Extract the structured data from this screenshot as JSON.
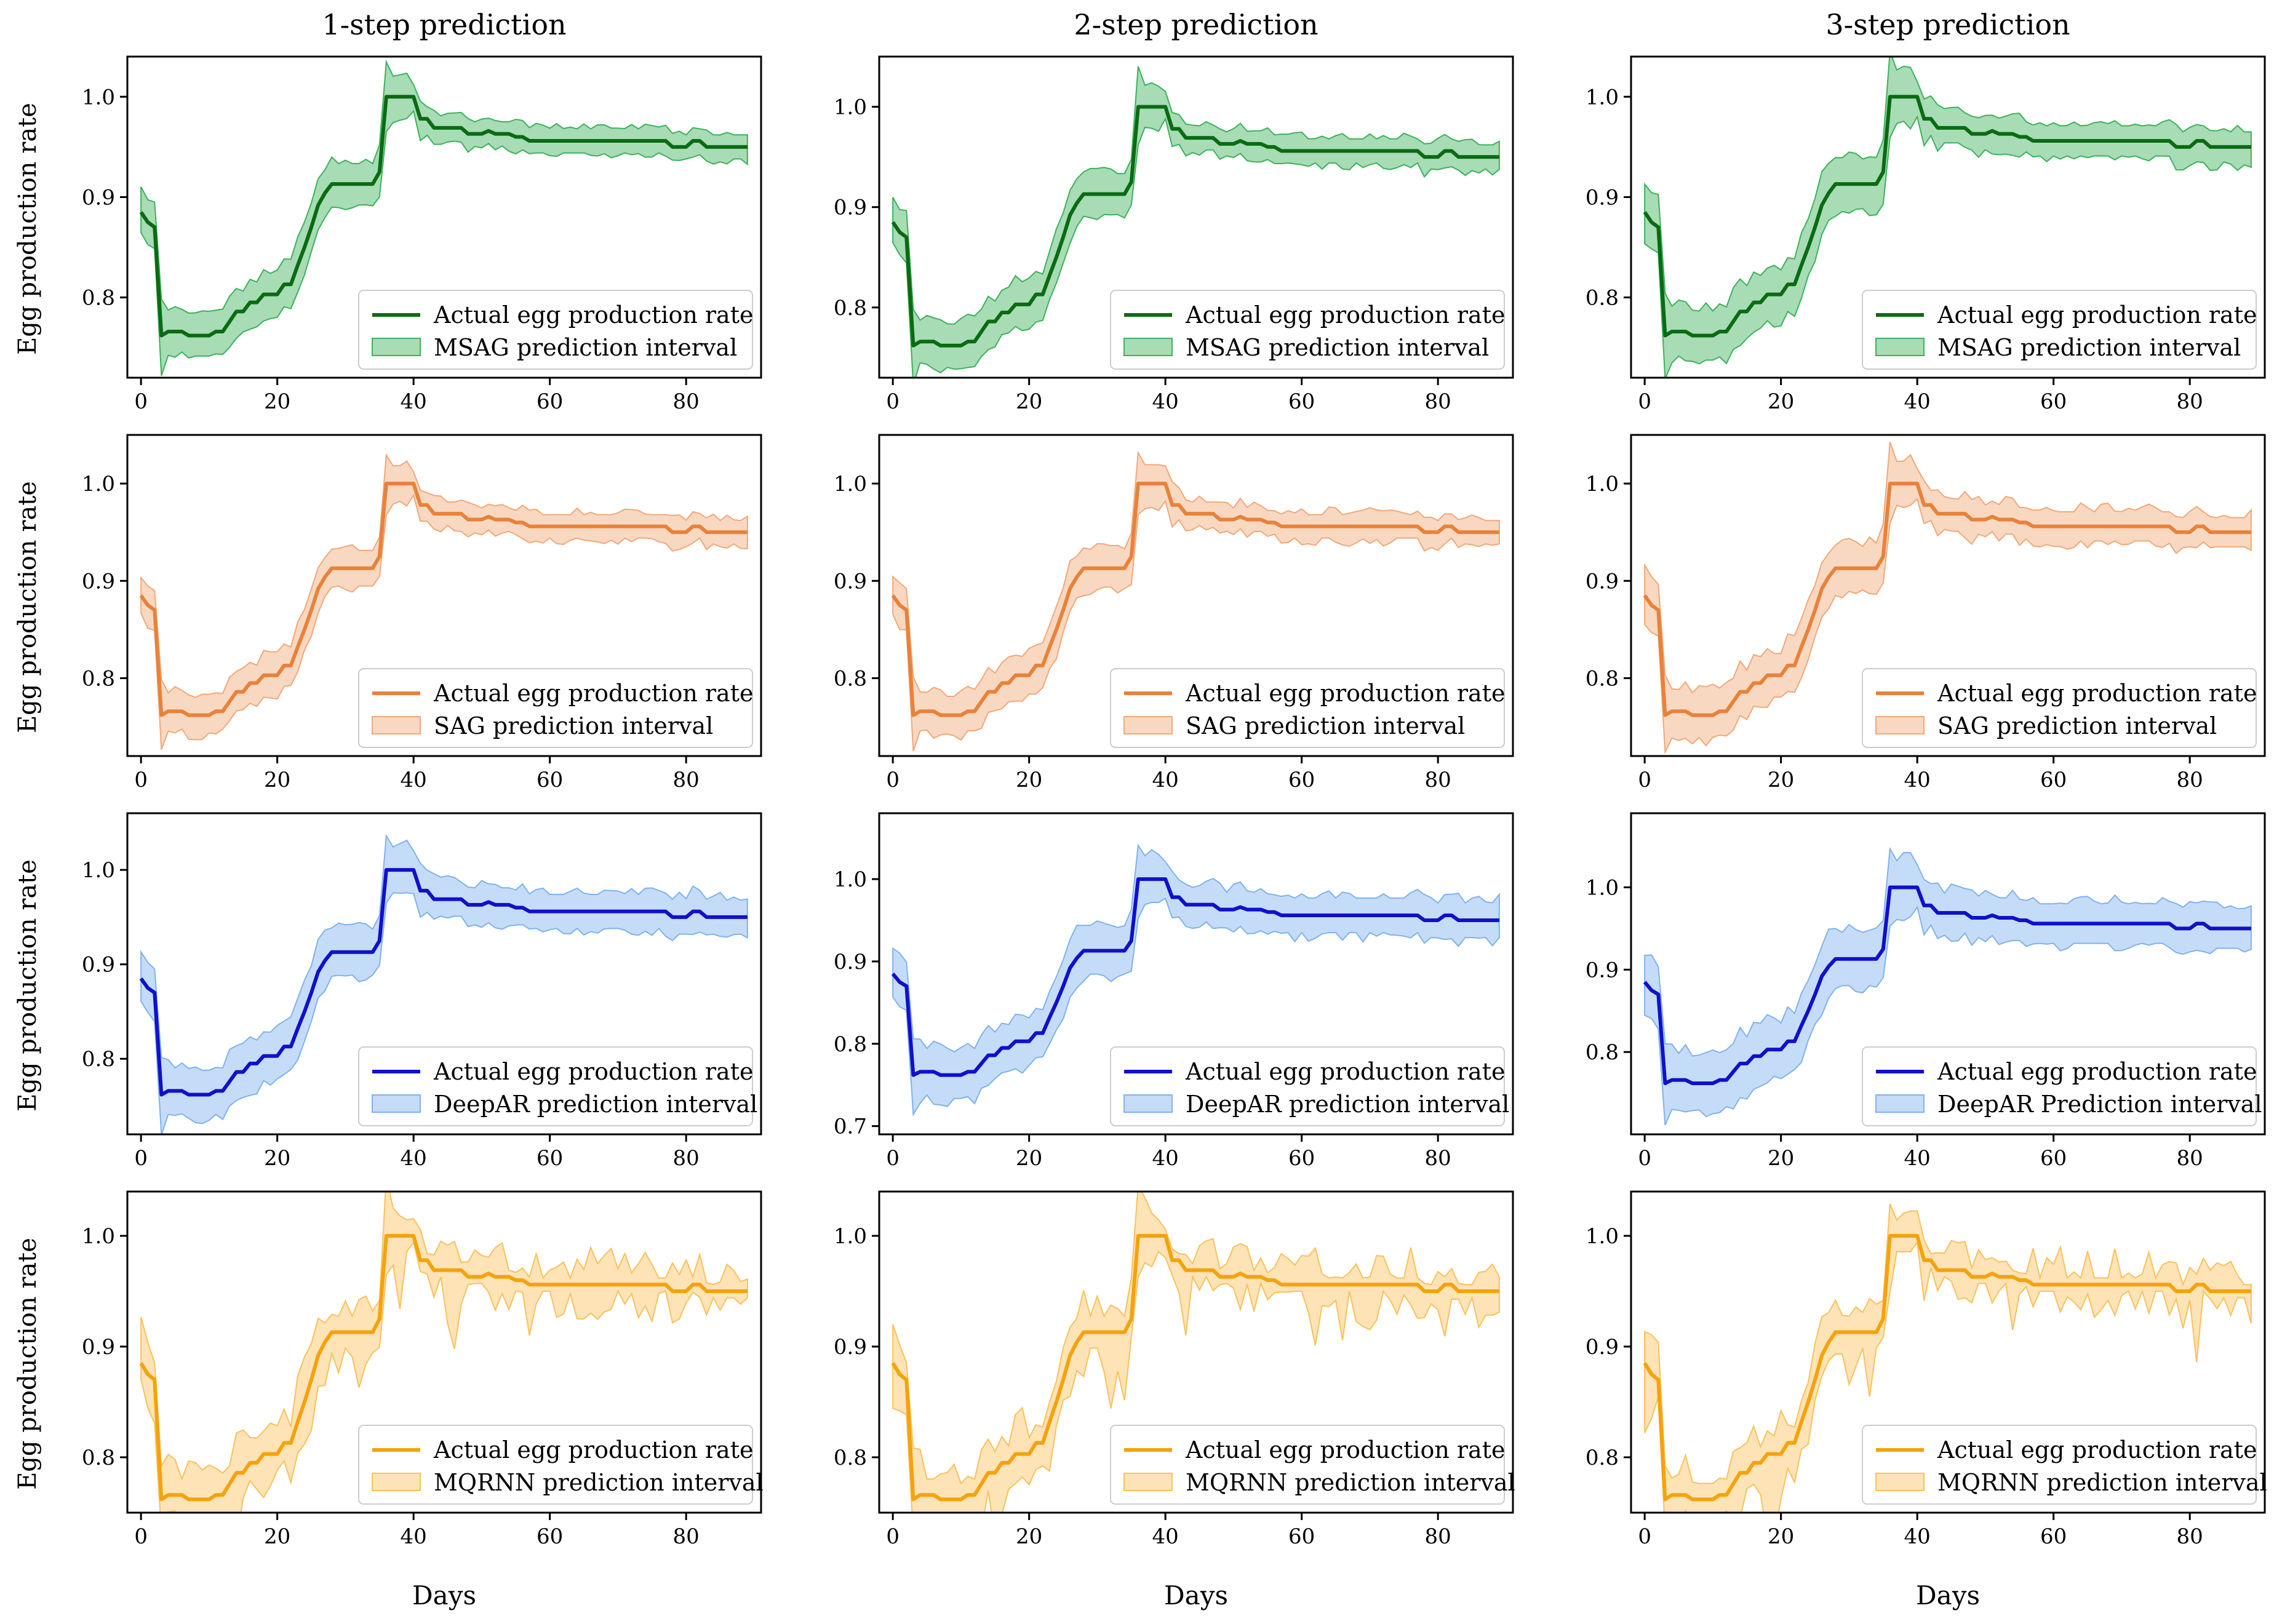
{
  "figure": {
    "column_titles": [
      "1-step prediction",
      "2-step prediction",
      "3-step prediction"
    ],
    "ylabel": "Egg production rate",
    "xlabel": "Days"
  },
  "chart_data": {
    "type": "line",
    "grid": false,
    "x_ticks": [
      0,
      20,
      40,
      60,
      80
    ],
    "xlim": [
      -2,
      91
    ],
    "actual": {
      "name": "Actual egg production rate",
      "x": [
        0,
        1,
        2,
        3,
        4,
        5,
        6,
        7,
        8,
        9,
        10,
        11,
        12,
        13,
        14,
        15,
        16,
        17,
        18,
        19,
        20,
        21,
        22,
        23,
        24,
        25,
        26,
        27,
        28,
        29,
        30,
        31,
        32,
        33,
        34,
        35,
        36,
        37,
        38,
        39,
        40,
        41,
        42,
        43,
        44,
        45,
        46,
        47,
        48,
        49,
        50,
        51,
        52,
        53,
        54,
        55,
        56,
        57,
        58,
        59,
        60,
        61,
        62,
        63,
        64,
        65,
        66,
        67,
        68,
        69,
        70,
        71,
        72,
        73,
        74,
        75,
        76,
        77,
        78,
        79,
        80,
        81,
        82,
        83,
        84,
        85,
        86,
        87,
        88,
        89
      ],
      "y": [
        0.885,
        0.875,
        0.87,
        0.762,
        0.766,
        0.766,
        0.766,
        0.762,
        0.762,
        0.762,
        0.762,
        0.766,
        0.766,
        0.776,
        0.786,
        0.786,
        0.795,
        0.795,
        0.803,
        0.803,
        0.803,
        0.813,
        0.813,
        0.832,
        0.85,
        0.87,
        0.892,
        0.904,
        0.913,
        0.913,
        0.913,
        0.913,
        0.913,
        0.913,
        0.913,
        0.925,
        1.0,
        1.0,
        1.0,
        1.0,
        1.0,
        0.978,
        0.978,
        0.969,
        0.969,
        0.969,
        0.969,
        0.969,
        0.963,
        0.963,
        0.963,
        0.966,
        0.963,
        0.963,
        0.963,
        0.96,
        0.96,
        0.956,
        0.956,
        0.956,
        0.956,
        0.956,
        0.956,
        0.956,
        0.956,
        0.956,
        0.956,
        0.956,
        0.956,
        0.956,
        0.956,
        0.956,
        0.956,
        0.956,
        0.956,
        0.956,
        0.956,
        0.956,
        0.95,
        0.95,
        0.95,
        0.956,
        0.956,
        0.95,
        0.95,
        0.95,
        0.95,
        0.95,
        0.95,
        0.95
      ]
    },
    "models": [
      {
        "name": "MSAG",
        "line_color": "#0a6b12",
        "fill_color": "#3cb25a"
      },
      {
        "name": "SAG",
        "line_color": "#e8823a",
        "fill_color": "#f2a877"
      },
      {
        "name": "DeepAR",
        "line_color": "#1010cc",
        "fill_color": "#7fb2f0"
      },
      {
        "name": "MQRNN",
        "line_color": "#f5a20c",
        "fill_color": "#fbc15c"
      }
    ],
    "panels": [
      {
        "row": 0,
        "col": 0,
        "model": "MSAG",
        "ylim": [
          0.72,
          1.04
        ],
        "y_ticks": [
          0.8,
          0.9,
          1.0
        ],
        "legend_position": "lower right",
        "legend_line": "Actual egg production rate",
        "legend_band": "MSAG prediction interval",
        "band_width": [
          0.02,
          0.06
        ],
        "noise": 0.004,
        "seed": 11
      },
      {
        "row": 0,
        "col": 1,
        "model": "MSAG",
        "ylim": [
          0.73,
          1.05
        ],
        "y_ticks": [
          0.8,
          0.9,
          1.0
        ],
        "legend_position": "lower right",
        "legend_line": "Actual egg production rate",
        "legend_band": "MSAG prediction interval",
        "band_width": [
          0.02,
          0.06
        ],
        "noise": 0.005,
        "seed": 12
      },
      {
        "row": 0,
        "col": 2,
        "model": "MSAG",
        "ylim": [
          0.72,
          1.04
        ],
        "y_ticks": [
          0.8,
          0.9,
          1.0
        ],
        "legend_position": "lower right",
        "legend_line": "Actual egg production rate",
        "legend_band": "MSAG prediction interval",
        "band_width": [
          0.025,
          0.07
        ],
        "noise": 0.006,
        "seed": 13
      },
      {
        "row": 1,
        "col": 0,
        "model": "SAG",
        "ylim": [
          0.72,
          1.05
        ],
        "y_ticks": [
          0.8,
          0.9,
          1.0
        ],
        "legend_position": "lower right",
        "legend_line": "Actual egg production rate",
        "legend_band": "SAG prediction interval",
        "band_width": [
          0.02,
          0.05
        ],
        "noise": 0.005,
        "seed": 21
      },
      {
        "row": 1,
        "col": 1,
        "model": "SAG",
        "ylim": [
          0.72,
          1.05
        ],
        "y_ticks": [
          0.8,
          0.9,
          1.0
        ],
        "legend_position": "lower right",
        "legend_line": "Actual egg production rate",
        "legend_band": "SAG prediction interval",
        "band_width": [
          0.02,
          0.055
        ],
        "noise": 0.006,
        "seed": 22
      },
      {
        "row": 1,
        "col": 2,
        "model": "SAG",
        "ylim": [
          0.72,
          1.05
        ],
        "y_ticks": [
          0.8,
          0.9,
          1.0
        ],
        "legend_position": "lower right",
        "legend_line": "Actual egg production rate",
        "legend_band": "SAG prediction interval",
        "band_width": [
          0.025,
          0.06
        ],
        "noise": 0.007,
        "seed": 23
      },
      {
        "row": 2,
        "col": 0,
        "model": "DeepAR",
        "ylim": [
          0.72,
          1.06
        ],
        "y_ticks": [
          0.8,
          0.9,
          1.0
        ],
        "legend_position": "lower right",
        "legend_line": "Actual egg production rate",
        "legend_band": "DeepAR prediction interval",
        "band_width": [
          0.03,
          0.06
        ],
        "noise": 0.006,
        "seed": 31
      },
      {
        "row": 2,
        "col": 1,
        "model": "DeepAR",
        "ylim": [
          0.69,
          1.08
        ],
        "y_ticks": [
          0.7,
          0.8,
          0.9,
          1.0
        ],
        "legend_position": "lower right",
        "legend_line": "Actual egg production rate",
        "legend_band": "DeepAR prediction interval",
        "band_width": [
          0.035,
          0.07
        ],
        "noise": 0.008,
        "seed": 32
      },
      {
        "row": 2,
        "col": 2,
        "model": "DeepAR",
        "ylim": [
          0.7,
          1.09
        ],
        "y_ticks": [
          0.8,
          0.9,
          1.0
        ],
        "legend_position": "lower right",
        "legend_line": "Actual egg production rate",
        "legend_band": "DeepAR Prediction interval",
        "band_width": [
          0.04,
          0.08
        ],
        "noise": 0.008,
        "seed": 33
      },
      {
        "row": 3,
        "col": 0,
        "model": "MQRNN",
        "ylim": [
          0.75,
          1.04
        ],
        "y_ticks": [
          0.8,
          0.9,
          1.0
        ],
        "legend_position": "lower right",
        "legend_line": "Actual egg production rate",
        "legend_band": "MQRNN prediction interval",
        "band_width": [
          0.01,
          0.05
        ],
        "noise": 0.02,
        "seed": 41
      },
      {
        "row": 3,
        "col": 1,
        "model": "MQRNN",
        "ylim": [
          0.75,
          1.04
        ],
        "y_ticks": [
          0.8,
          0.9,
          1.0
        ],
        "legend_position": "lower right",
        "legend_line": "Actual egg production rate",
        "legend_band": "MQRNN prediction interval",
        "band_width": [
          0.01,
          0.05
        ],
        "noise": 0.02,
        "seed": 42
      },
      {
        "row": 3,
        "col": 2,
        "model": "MQRNN",
        "ylim": [
          0.75,
          1.04
        ],
        "y_ticks": [
          0.8,
          0.9,
          1.0
        ],
        "legend_position": "lower right",
        "legend_line": "Actual egg production rate",
        "legend_band": "MQRNN prediction interval",
        "band_width": [
          0.01,
          0.05
        ],
        "noise": 0.02,
        "seed": 43
      }
    ]
  }
}
